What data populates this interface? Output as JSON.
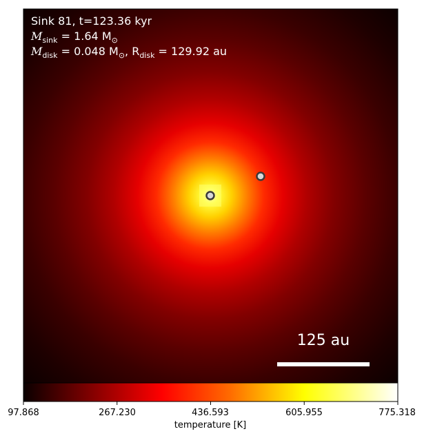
{
  "panel": {
    "title": "Sink 81, t=123.36 kyr",
    "sink_mass_label": "M",
    "sink_mass_sub": "sink",
    "sink_mass_value": " = 1.64 M",
    "sun_symbol": "⊙",
    "disk_mass_label": "M",
    "disk_mass_sub": "disk",
    "disk_mass_value": " = 0.048 M",
    "disk_radius_label": ", R",
    "disk_radius_sub": "disk",
    "disk_radius_value": " = 129.92 au"
  },
  "scale_bar": {
    "label": "125 au"
  },
  "colorbar": {
    "label": "temperature [K]",
    "ticks": [
      "97.868",
      "267.230",
      "436.593",
      "605.955",
      "775.318"
    ],
    "colormap": "hot"
  },
  "sinks": [
    {
      "name": "primary-sink"
    },
    {
      "name": "secondary-sink"
    }
  ],
  "colors": {
    "marker_fill": "#d8d8d8",
    "marker_edge": "#3a3a3a",
    "text": "#ffffff"
  }
}
